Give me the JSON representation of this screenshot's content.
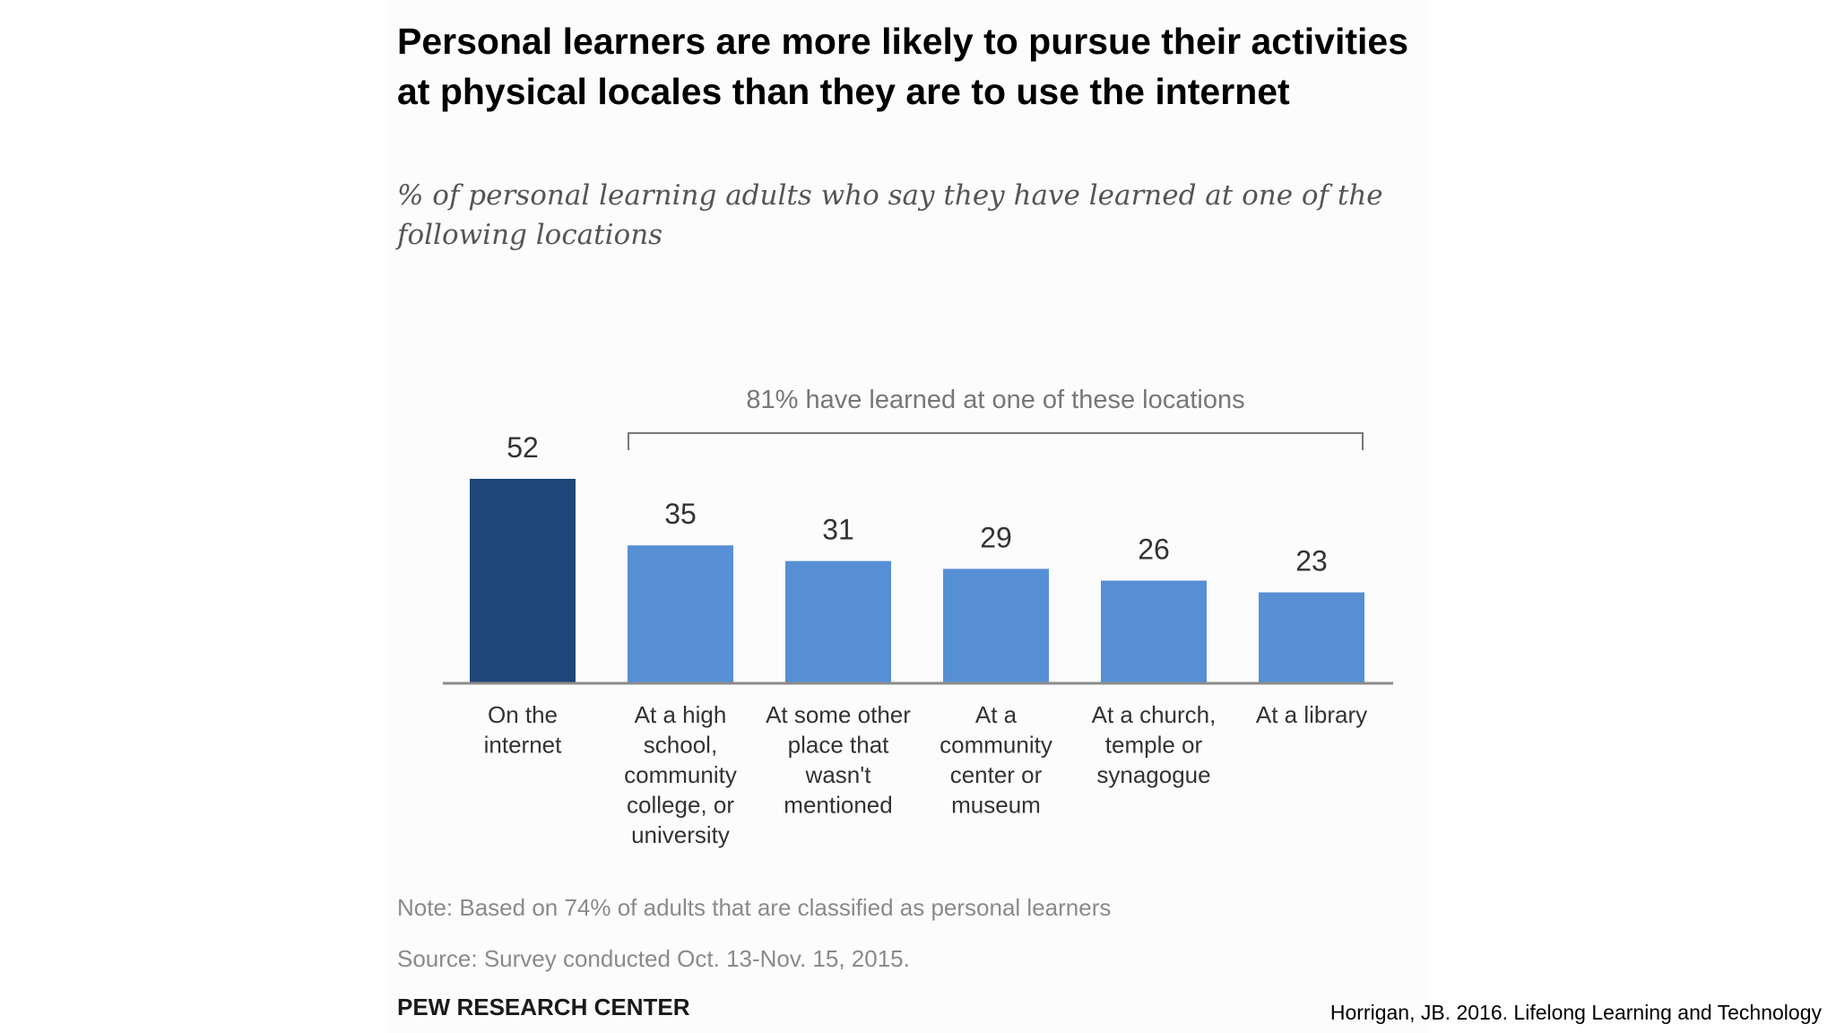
{
  "chart_data": {
    "type": "bar",
    "title": "Personal learners are more likely to pursue their activities at physical locales than they are to use the internet",
    "subtitle": "% of personal learning adults who say they have learned at one of the following locations",
    "categories": [
      [
        "On the",
        "internet"
      ],
      [
        "At a high",
        "school,",
        "community",
        "college, or",
        "university"
      ],
      [
        "At some other",
        "place that",
        "wasn't",
        "mentioned"
      ],
      [
        "At a",
        "community",
        "center or",
        "museum"
      ],
      [
        "At a church,",
        "temple or",
        "synagogue"
      ],
      [
        "At a library"
      ]
    ],
    "values": [
      52,
      35,
      31,
      29,
      26,
      23
    ],
    "bar_colors": [
      "#1f4679",
      "#578fd5",
      "#578fd5",
      "#578fd5",
      "#578fd5",
      "#578fd5"
    ],
    "ylim": [
      0,
      52
    ],
    "xlabel": "",
    "ylabel": "",
    "annotation": {
      "text": "81% have learned at one of these locations",
      "spans_categories": [
        1,
        5
      ]
    },
    "note": "Note: Based on 74% of adults that are classified as personal learners",
    "source": "Source: Survey conducted Oct. 13-Nov. 15, 2015."
  },
  "brand": "PEW RESEARCH CENTER",
  "citation": "Horrigan, JB. 2016. Lifelong Learning and Technology",
  "colors": {
    "text": "#000000",
    "muted_text": "#8a8a8a",
    "label_text": "#333333",
    "axis": "#8c8c8c",
    "annotation": "#777777",
    "panel_background": "#fcfcfc"
  }
}
